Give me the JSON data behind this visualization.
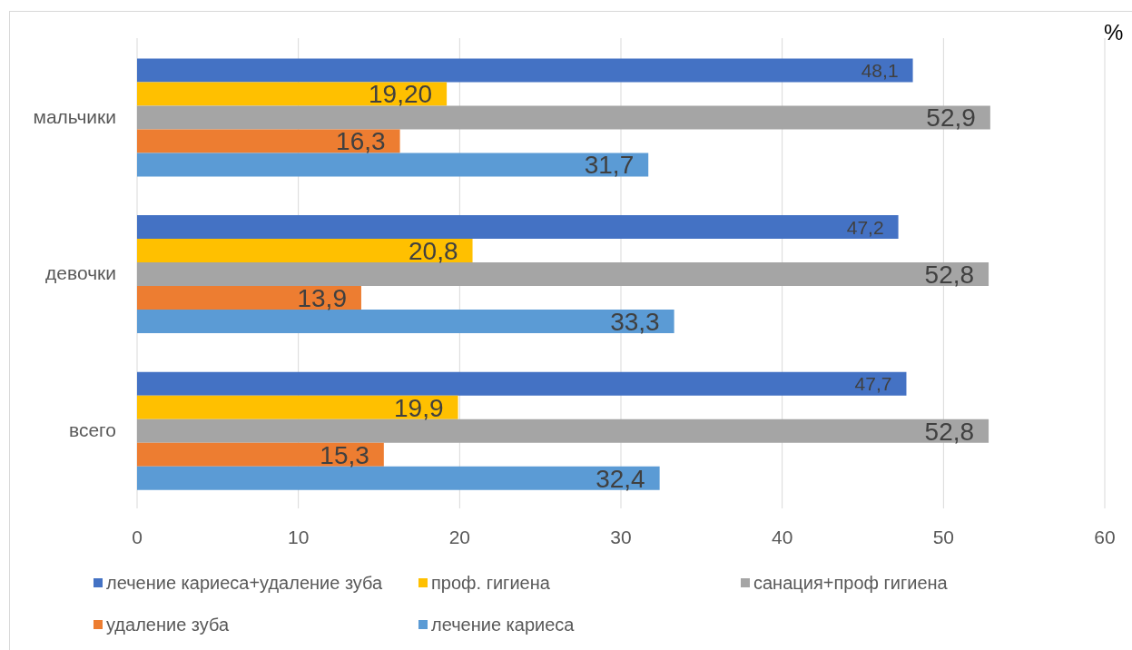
{
  "chart_data": {
    "type": "bar",
    "orientation": "horizontal",
    "categories": [
      "мальчики",
      "девочки",
      "всего"
    ],
    "series": [
      {
        "name": "лечение кариеса+удаление зуба",
        "color": "#4472c4",
        "values": [
          48.1,
          47.2,
          47.7
        ],
        "value_labels": [
          "48,1",
          "47,2",
          "47,7"
        ]
      },
      {
        "name": "проф. гигиена",
        "color": "#ffc000",
        "values": [
          19.2,
          20.8,
          19.9
        ],
        "value_labels": [
          "19,20",
          "20,8",
          "19,9"
        ]
      },
      {
        "name": "санация+проф гигиена",
        "color": "#a5a5a5",
        "values": [
          52.9,
          52.8,
          52.8
        ],
        "value_labels": [
          "52,9",
          "52,8",
          "52,8"
        ]
      },
      {
        "name": "удаление зуба",
        "color": "#ed7d31",
        "values": [
          16.3,
          13.9,
          15.3
        ],
        "value_labels": [
          "16,3",
          "13,9",
          "15,3"
        ]
      },
      {
        "name": "лечение кариеса",
        "color": "#5b9bd5",
        "values": [
          31.7,
          33.3,
          32.4
        ],
        "value_labels": [
          "31,7",
          "33,3",
          "32,4"
        ]
      }
    ],
    "xlim": [
      0,
      60
    ],
    "xticks": [
      0,
      10,
      20,
      30,
      40,
      50,
      60
    ],
    "grid": "x",
    "legend": "bottom",
    "annotations": [
      "%"
    ]
  }
}
